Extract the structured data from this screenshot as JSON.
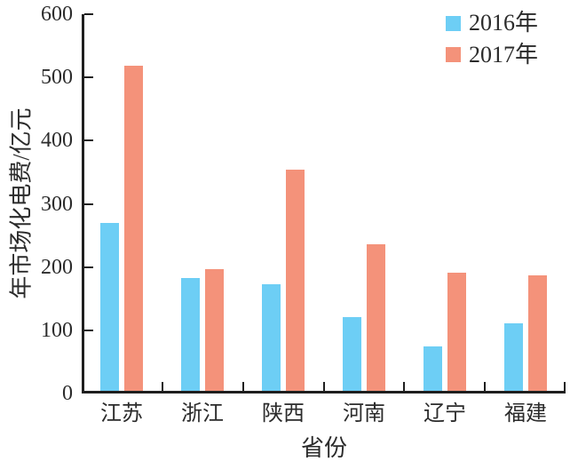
{
  "chart_data": {
    "type": "bar",
    "title": "",
    "categories": [
      "江苏",
      "浙江",
      "陕西",
      "河南",
      "辽宁",
      "福建"
    ],
    "series": [
      {
        "name": "2016年",
        "color": "#6DCEF5",
        "values": [
          265,
          178,
          168,
          117,
          70,
          107
        ]
      },
      {
        "name": "2017年",
        "color": "#F4927A",
        "values": [
          515,
          193,
          350,
          232,
          187,
          183
        ]
      }
    ],
    "xlabel": "省份",
    "ylabel": "年市场化电费/亿元",
    "ylim": [
      0,
      600
    ],
    "yticks": [
      0,
      100,
      200,
      300,
      400,
      500,
      600
    ],
    "grid": false,
    "legend_position": "top-right"
  },
  "colors": {
    "axis": "#1f1f1f",
    "text": "#2b2b2b",
    "background": "#ffffff",
    "series_2016": "#6DCEF5",
    "series_2017": "#F4927A"
  }
}
